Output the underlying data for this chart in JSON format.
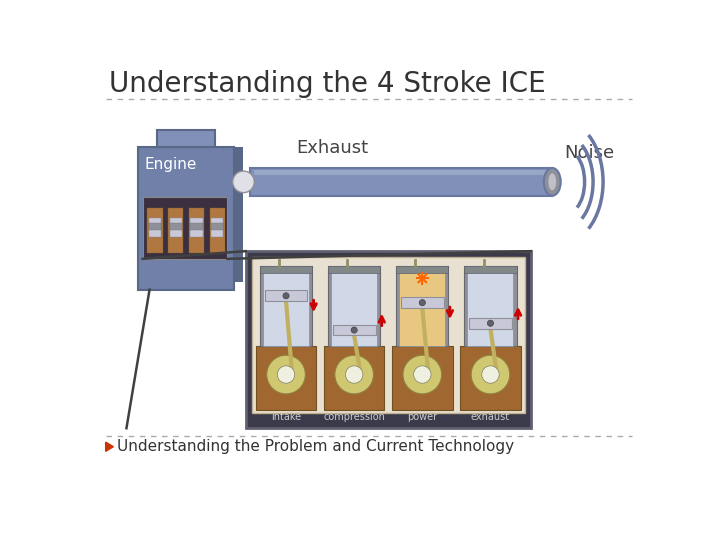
{
  "title": "Understanding the 4 Stroke ICE",
  "subtitle": "Understanding the Problem and Current Technology",
  "bg_color": "#ffffff",
  "title_color": "#333333",
  "title_fontsize": 20,
  "engine_label": "Engine",
  "exhaust_label": "Exhaust",
  "noise_label": "Noise",
  "engine_color": "#7080a8",
  "engine_dark": "#5a6888",
  "engine_top_color": "#8090b8",
  "exhaust_color": "#8090b8",
  "exhaust_dark": "#6878a0",
  "noise_color": "#6878a0",
  "subtitle_color": "#333333",
  "subtitle_fontsize": 11,
  "arrow_color": "#cc3300",
  "divider_color": "#aaaaaa",
  "label_outline_color": "#5a6888",
  "label_text_color": "#ffffff",
  "diagram_bg": "#3a3a4a",
  "diagram_inner_bg": "#f0e8d8"
}
